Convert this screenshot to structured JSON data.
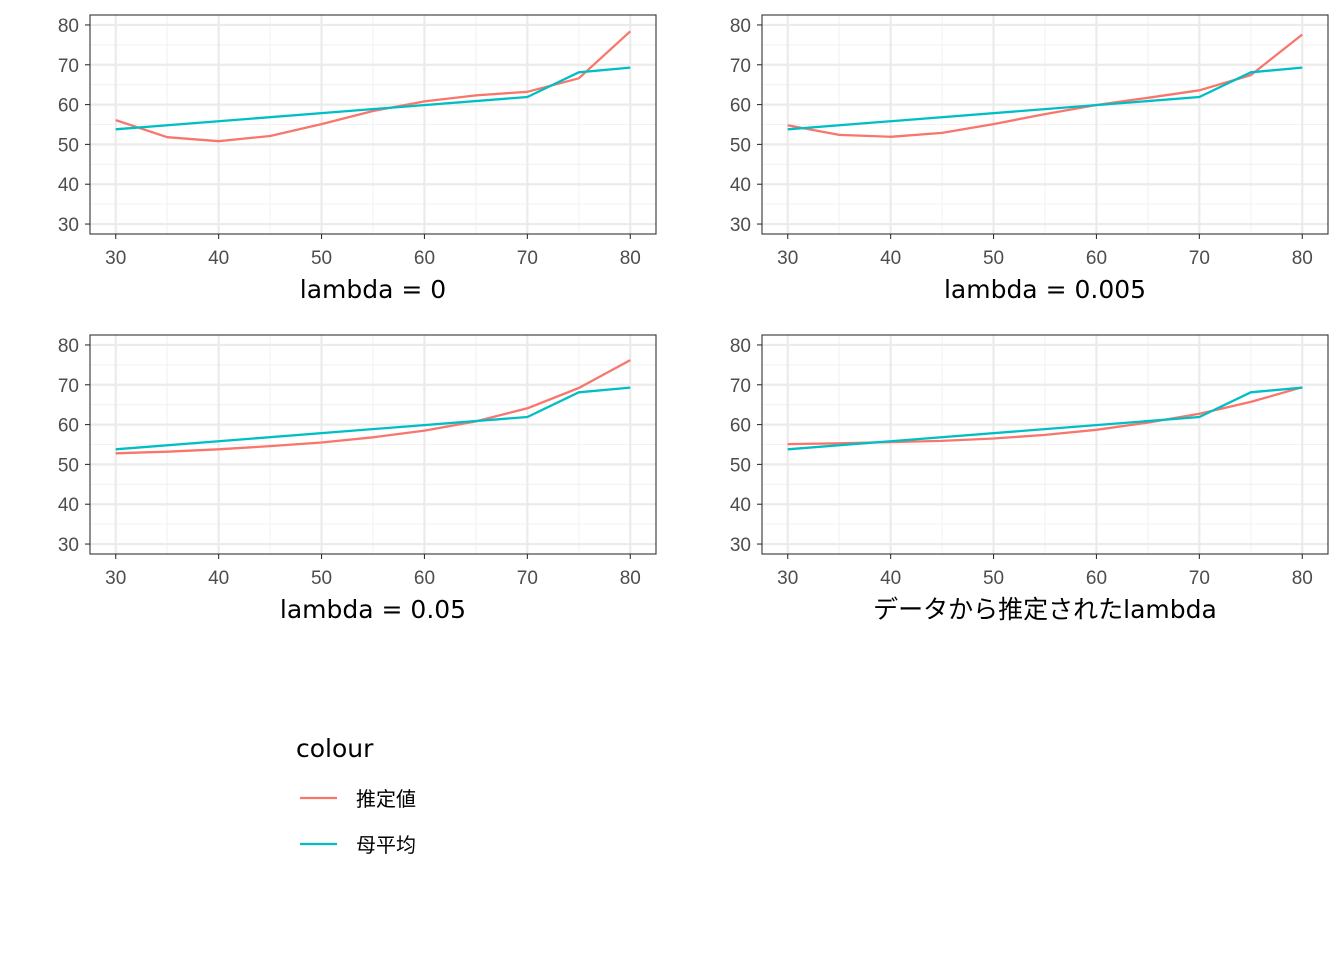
{
  "chart_data": [
    {
      "type": "line",
      "xlabel": "lambda = 0",
      "ylabel": "",
      "xlim": [
        27.5,
        82.5
      ],
      "ylim": [
        27.5,
        82.5
      ],
      "x_ticks": [
        30,
        40,
        50,
        60,
        70,
        80
      ],
      "y_ticks": [
        30,
        40,
        50,
        60,
        70,
        80
      ],
      "grid": true,
      "series": [
        {
          "name": "推定値",
          "color": "#F8766D",
          "x": [
            30,
            35,
            40,
            45,
            50,
            55,
            60,
            65,
            70,
            75,
            80
          ],
          "y": [
            56.1,
            51.8,
            50.8,
            52.1,
            55.1,
            58.4,
            60.8,
            62.3,
            63.2,
            66.6,
            78.4
          ]
        },
        {
          "name": "母平均",
          "color": "#00BFC4",
          "x": [
            30,
            70,
            75,
            80
          ],
          "y": [
            53.8,
            61.9,
            68.1,
            69.3
          ]
        }
      ]
    },
    {
      "type": "line",
      "xlabel": "lambda = 0.005",
      "ylabel": "",
      "xlim": [
        27.5,
        82.5
      ],
      "ylim": [
        27.5,
        82.5
      ],
      "x_ticks": [
        30,
        40,
        50,
        60,
        70,
        80
      ],
      "y_ticks": [
        30,
        40,
        50,
        60,
        70,
        80
      ],
      "grid": true,
      "series": [
        {
          "name": "推定値",
          "color": "#F8766D",
          "x": [
            30,
            35,
            40,
            45,
            50,
            55,
            60,
            65,
            70,
            75,
            80
          ],
          "y": [
            54.8,
            52.4,
            51.9,
            52.9,
            55.1,
            57.6,
            59.9,
            61.7,
            63.6,
            67.4,
            77.6
          ]
        },
        {
          "name": "母平均",
          "color": "#00BFC4",
          "x": [
            30,
            70,
            75,
            80
          ],
          "y": [
            53.8,
            61.9,
            68.1,
            69.3
          ]
        }
      ]
    },
    {
      "type": "line",
      "xlabel": "lambda = 0.05",
      "ylabel": "",
      "xlim": [
        27.5,
        82.5
      ],
      "ylim": [
        27.5,
        82.5
      ],
      "x_ticks": [
        30,
        40,
        50,
        60,
        70,
        80
      ],
      "y_ticks": [
        30,
        40,
        50,
        60,
        70,
        80
      ],
      "grid": true,
      "series": [
        {
          "name": "推定値",
          "color": "#F8766D",
          "x": [
            30,
            35,
            40,
            45,
            50,
            55,
            60,
            65,
            70,
            75,
            80
          ],
          "y": [
            52.8,
            53.2,
            53.8,
            54.6,
            55.5,
            56.8,
            58.5,
            60.8,
            64.1,
            69.2,
            76.2
          ]
        },
        {
          "name": "母平均",
          "color": "#00BFC4",
          "x": [
            30,
            70,
            75,
            80
          ],
          "y": [
            53.8,
            61.9,
            68.1,
            69.3
          ]
        }
      ]
    },
    {
      "type": "line",
      "xlabel": "データから推定されたlambda",
      "ylabel": "",
      "xlim": [
        27.5,
        82.5
      ],
      "ylim": [
        27.5,
        82.5
      ],
      "x_ticks": [
        30,
        40,
        50,
        60,
        70,
        80
      ],
      "y_ticks": [
        30,
        40,
        50,
        60,
        70,
        80
      ],
      "grid": true,
      "series": [
        {
          "name": "推定値",
          "color": "#F8766D",
          "x": [
            30,
            35,
            40,
            45,
            50,
            55,
            60,
            65,
            70,
            75,
            80
          ],
          "y": [
            55.1,
            55.3,
            55.6,
            55.9,
            56.5,
            57.4,
            58.7,
            60.5,
            62.7,
            65.7,
            69.4
          ]
        },
        {
          "name": "母平均",
          "color": "#00BFC4",
          "x": [
            30,
            70,
            75,
            80
          ],
          "y": [
            53.8,
            61.9,
            68.1,
            69.3
          ]
        }
      ]
    }
  ],
  "legend": {
    "title": "colour",
    "items": [
      {
        "label": "推定値",
        "color": "#F8766D"
      },
      {
        "label": "母平均",
        "color": "#00BFC4"
      }
    ]
  }
}
